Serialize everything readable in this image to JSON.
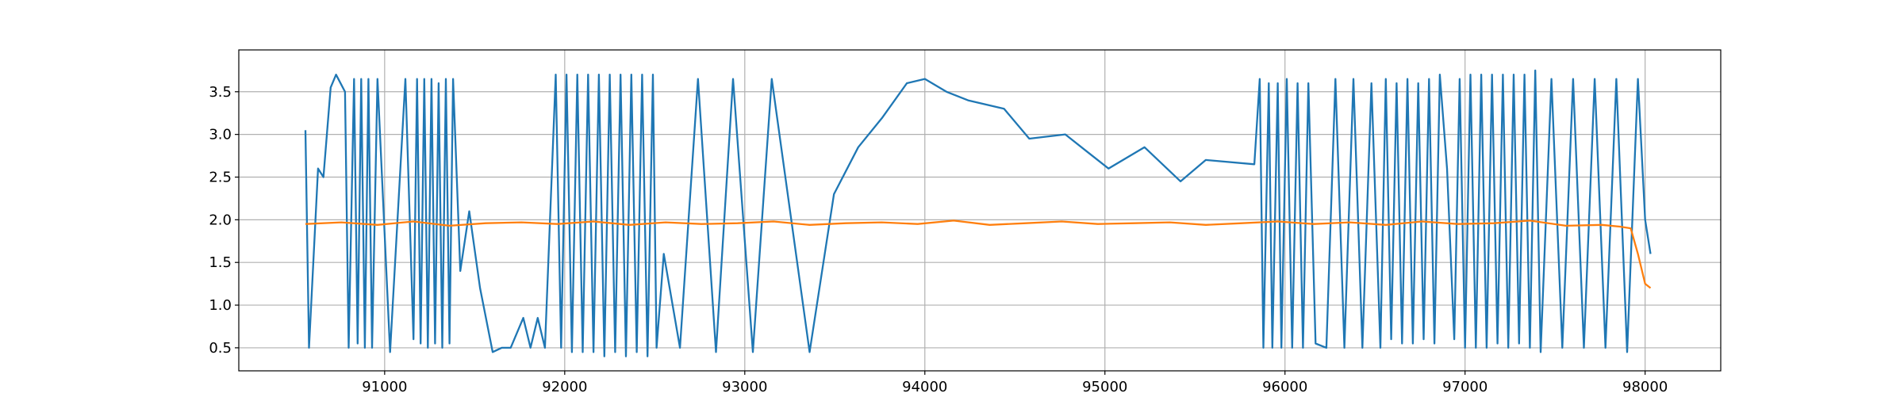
{
  "chart_data": {
    "type": "line",
    "xlim": [
      90190,
      98420
    ],
    "ylim": [
      0.23,
      3.99
    ],
    "xticks": [
      91000,
      92000,
      93000,
      94000,
      95000,
      96000,
      97000,
      98000
    ],
    "yticks": [
      0.5,
      {
        "value": 1,
        "label": "1.0"
      },
      1.5,
      {
        "value": 2,
        "label": "2.0"
      },
      2.5,
      {
        "value": 3,
        "label": "3.0"
      },
      3.5
    ],
    "grid": true,
    "series": [
      {
        "color": "#1f77b4",
        "x": [
          90560,
          90580,
          90630,
          90660,
          90700,
          90730,
          90780,
          90800,
          90830,
          90850,
          90870,
          90890,
          90910,
          90930,
          90960,
          91030,
          91115,
          91160,
          91180,
          91200,
          91220,
          91240,
          91260,
          91280,
          91300,
          91320,
          91340,
          91360,
          91380,
          91420,
          91470,
          91530,
          91600,
          91650,
          91700,
          91770,
          91810,
          91850,
          91890,
          91950,
          91980,
          92010,
          92040,
          92070,
          92100,
          92130,
          92160,
          92190,
          92220,
          92250,
          92280,
          92310,
          92340,
          92370,
          92400,
          92430,
          92460,
          92490,
          92510,
          92550,
          92640,
          92740,
          92840,
          92935,
          93045,
          93150,
          93360,
          93495,
          93630,
          93765,
          93900,
          94000,
          94120,
          94240,
          94440,
          94580,
          94780,
          94900,
          95020,
          95220,
          95420,
          95560,
          95830,
          95860,
          95880,
          95910,
          95930,
          95960,
          95980,
          96010,
          96040,
          96070,
          96100,
          96130,
          96170,
          96230,
          96280,
          96330,
          96380,
          96430,
          96480,
          96530,
          96560,
          96590,
          96620,
          96650,
          96680,
          96710,
          96740,
          96770,
          96800,
          96830,
          96860,
          96900,
          96940,
          96970,
          97000,
          97030,
          97060,
          97090,
          97120,
          97150,
          97180,
          97210,
          97240,
          97270,
          97300,
          97330,
          97360,
          97390,
          97420,
          97480,
          97540,
          97600,
          97660,
          97720,
          97780,
          97840,
          97900,
          97960,
          98000,
          98030
        ],
        "values": [
          3.05,
          0.5,
          2.6,
          2.5,
          3.55,
          3.7,
          3.5,
          0.5,
          3.65,
          0.55,
          3.65,
          0.5,
          3.65,
          0.5,
          3.65,
          0.45,
          3.65,
          0.6,
          3.65,
          0.55,
          3.65,
          0.5,
          3.65,
          0.55,
          3.6,
          0.5,
          3.65,
          0.55,
          3.65,
          1.4,
          2.1,
          1.2,
          0.45,
          0.5,
          0.5,
          0.85,
          0.5,
          0.85,
          0.5,
          3.7,
          0.5,
          3.7,
          0.45,
          3.7,
          0.45,
          3.7,
          0.45,
          3.7,
          0.4,
          3.7,
          0.45,
          3.7,
          0.4,
          3.7,
          0.45,
          3.7,
          0.4,
          3.7,
          0.5,
          1.6,
          0.5,
          3.65,
          0.45,
          3.65,
          0.45,
          3.65,
          0.45,
          2.3,
          2.85,
          3.2,
          3.6,
          3.65,
          3.5,
          3.4,
          3.3,
          2.95,
          3.0,
          2.8,
          2.6,
          2.85,
          2.45,
          2.7,
          2.65,
          3.65,
          0.5,
          3.6,
          0.5,
          3.6,
          0.5,
          3.65,
          0.5,
          3.6,
          0.5,
          3.6,
          0.55,
          0.5,
          3.65,
          0.5,
          3.65,
          0.5,
          3.6,
          0.5,
          3.65,
          0.6,
          3.6,
          0.55,
          3.65,
          0.55,
          3.6,
          0.6,
          3.65,
          0.55,
          3.7,
          2.6,
          0.6,
          3.65,
          0.5,
          3.7,
          0.5,
          3.7,
          0.5,
          3.7,
          0.55,
          3.7,
          0.5,
          3.7,
          0.55,
          3.7,
          0.5,
          3.75,
          0.45,
          3.65,
          0.5,
          3.65,
          0.5,
          3.65,
          0.5,
          3.65,
          0.45,
          3.65,
          2.0,
          1.6
        ]
      },
      {
        "color": "#ff7f0e",
        "x": [
          90560,
          90760,
          90960,
          91160,
          91360,
          91560,
          91760,
          91960,
          92160,
          92360,
          92560,
          92760,
          92960,
          93160,
          93360,
          93560,
          93760,
          93960,
          94160,
          94360,
          94560,
          94760,
          94960,
          95160,
          95360,
          95560,
          95760,
          95960,
          96160,
          96360,
          96560,
          96760,
          96960,
          97160,
          97360,
          97560,
          97760,
          97860,
          97920,
          97960,
          98000,
          98030
        ],
        "values": [
          1.95,
          1.97,
          1.94,
          1.98,
          1.93,
          1.96,
          1.97,
          1.95,
          1.98,
          1.94,
          1.97,
          1.95,
          1.96,
          1.98,
          1.94,
          1.96,
          1.97,
          1.95,
          1.99,
          1.94,
          1.96,
          1.98,
          1.95,
          1.96,
          1.97,
          1.94,
          1.96,
          1.98,
          1.95,
          1.97,
          1.94,
          1.98,
          1.95,
          1.96,
          1.99,
          1.93,
          1.94,
          1.92,
          1.9,
          1.6,
          1.25,
          1.2
        ]
      }
    ]
  }
}
